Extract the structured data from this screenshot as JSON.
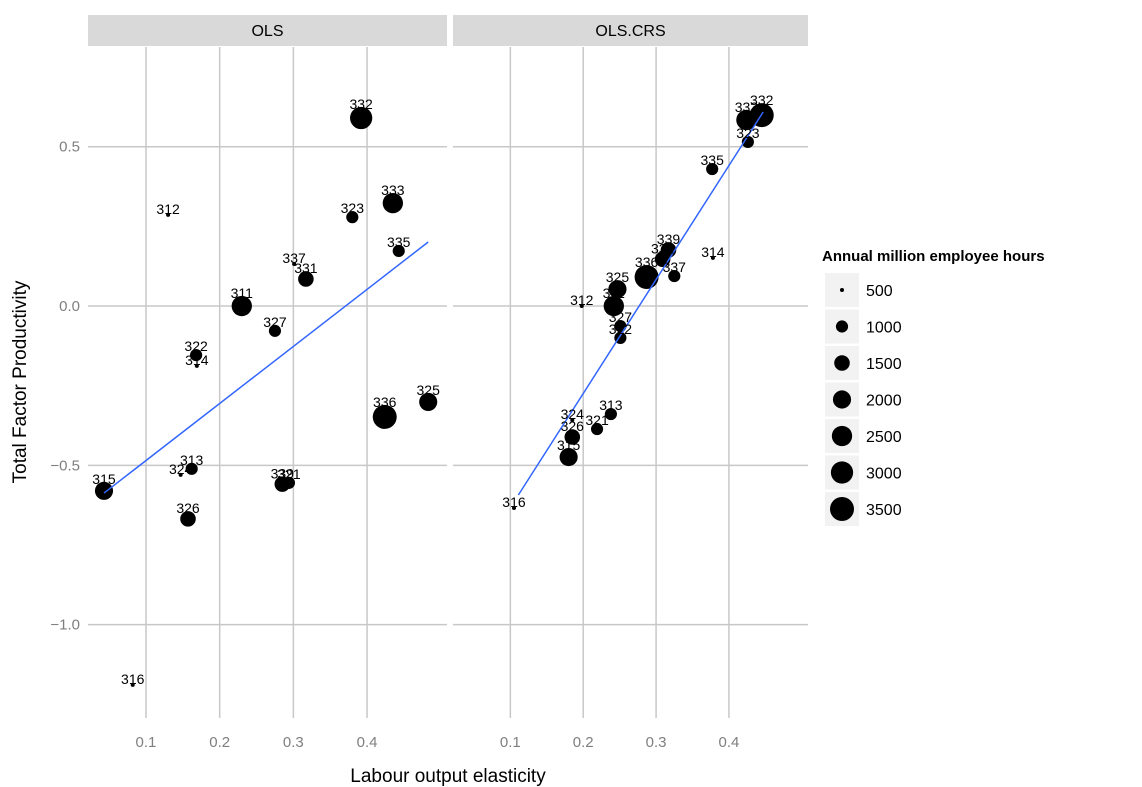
{
  "chart_data": {
    "type": "scatter",
    "x_label": "Labour output elasticity",
    "y_label": "Total Factor Productivity",
    "legend_title": "Annual million employee hours",
    "size_legend": [
      500,
      1000,
      1500,
      2000,
      2500,
      3000,
      3500
    ],
    "color": "#000000",
    "fit_color": "#3366ff",
    "xlim": [
      0.0213,
      0.5085
    ],
    "ylim": [
      -1.293,
      0.813
    ],
    "xticks": [
      0.1,
      0.2,
      0.3,
      0.4
    ],
    "yticks": [
      {
        "value": -1.0,
        "label": "−1.0"
      },
      {
        "value": -0.5,
        "label": "−0.5"
      },
      {
        "value": 0.0,
        "label": "0.0"
      },
      {
        "value": 0.5,
        "label": "0.5"
      }
    ],
    "grid": true,
    "panels": [
      {
        "title": "OLS",
        "labels": [
          "332",
          "312",
          "323",
          "333",
          "335",
          "337",
          "331",
          "311",
          "327",
          "322",
          "314",
          "325",
          "336",
          "313",
          "324",
          "315",
          "339",
          "321",
          "326",
          "316"
        ],
        "x": [
          0.392,
          0.13,
          0.38,
          0.435,
          0.443,
          0.301,
          0.317,
          0.23,
          0.275,
          0.168,
          0.169,
          0.483,
          0.424,
          0.162,
          0.147,
          0.043,
          0.285,
          0.294,
          0.157,
          0.082
        ],
        "y": [
          0.59,
          0.286,
          0.279,
          0.323,
          0.173,
          0.132,
          0.085,
          0.0,
          -0.078,
          -0.154,
          -0.188,
          -0.301,
          -0.348,
          -0.511,
          -0.53,
          -0.58,
          -0.559,
          -0.555,
          -0.668,
          -1.189
        ],
        "size": [
          3000,
          500,
          1000,
          2500,
          1000,
          500,
          1500,
          2500,
          1000,
          1000,
          500,
          2000,
          3500,
          1000,
          500,
          2000,
          1500,
          1000,
          1500,
          500
        ],
        "fit_x": [
          0.043,
          0.483
        ],
        "fit_y": [
          -0.587,
          0.201
        ]
      },
      {
        "title": "OLS.CRS",
        "labels": [
          "332",
          "333",
          "323",
          "335",
          "314",
          "339",
          "331",
          "337",
          "336",
          "325",
          "312",
          "311",
          "327",
          "322",
          "313",
          "321",
          "324",
          "326",
          "315",
          "316"
        ],
        "x": [
          0.445,
          0.424,
          0.426,
          0.377,
          0.378,
          0.317,
          0.309,
          0.325,
          0.287,
          0.247,
          0.198,
          0.242,
          0.251,
          0.251,
          0.238,
          0.219,
          0.185,
          0.185,
          0.18,
          0.105
        ],
        "y": [
          0.599,
          0.584,
          0.515,
          0.43,
          0.151,
          0.176,
          0.147,
          0.094,
          0.091,
          0.053,
          0.0,
          0.0,
          -0.063,
          -0.1,
          -0.339,
          -0.386,
          -0.358,
          -0.411,
          -0.474,
          -0.634
        ],
        "size": [
          3500,
          2500,
          1000,
          1000,
          500,
          1500,
          1500,
          1000,
          3500,
          2000,
          500,
          2500,
          1000,
          1000,
          1000,
          1000,
          500,
          1500,
          2000,
          500
        ],
        "fit_x": [
          0.111,
          0.447
        ],
        "fit_y": [
          -0.593,
          0.609
        ]
      }
    ]
  }
}
